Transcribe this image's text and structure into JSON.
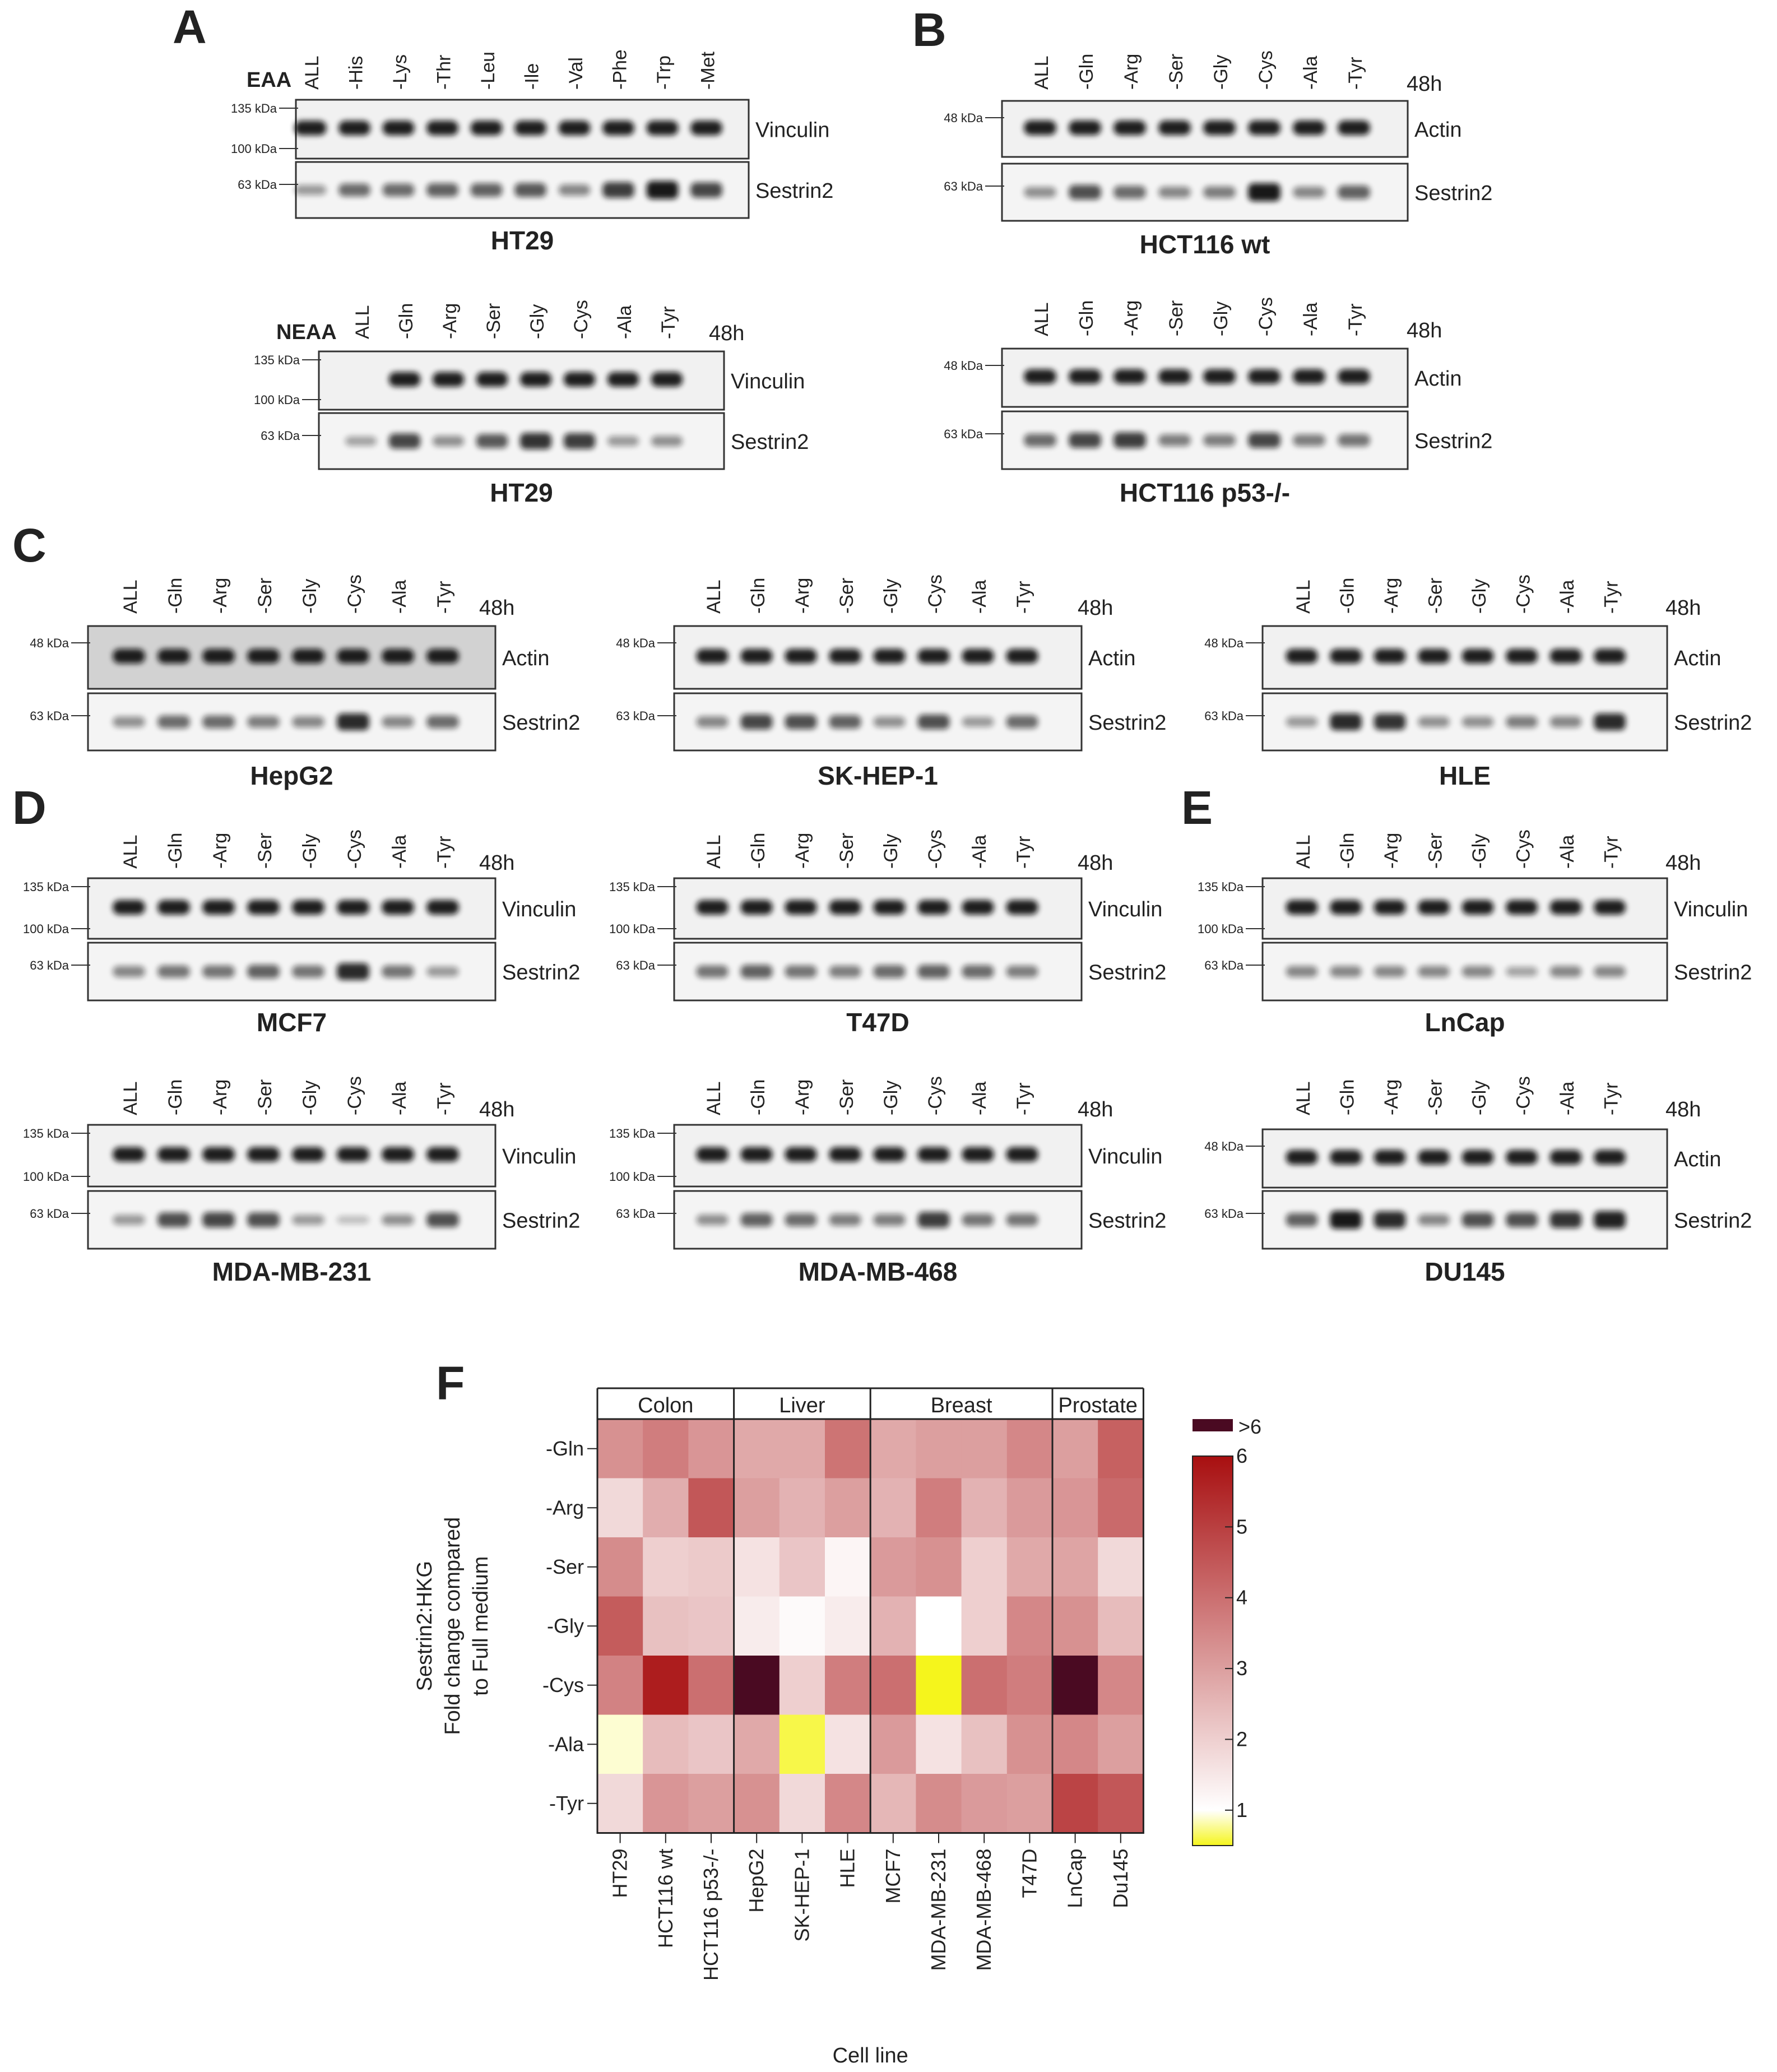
{
  "panel_letters": {
    "A": "A",
    "B": "B",
    "C": "C",
    "D": "D",
    "E": "E",
    "F": "F"
  },
  "units": {
    "kda_135": "135 kDa",
    "kda_100": "100 kDa",
    "kda_63": "63 kDa",
    "kda_48": "48 kDa",
    "time": "48h"
  },
  "panels": {
    "a1": {
      "group_label": "EAA",
      "lanes": [
        "ALL",
        "-His",
        "-Lys",
        "-Thr",
        "-Leu",
        "-Ile",
        "-Val",
        "-Phe",
        "-Trp",
        "-Met"
      ],
      "blot_top": "Vinculin",
      "blot_bottom": "Sestrin2",
      "title": "HT29",
      "intensity": [
        0.3,
        0.55,
        0.55,
        0.6,
        0.6,
        0.65,
        0.4,
        0.8,
        1.0,
        0.75
      ]
    },
    "a2": {
      "group_label": "NEAA",
      "lanes": [
        "ALL",
        "-Gln",
        "-Arg",
        "-Ser",
        "-Gly",
        "-Cys",
        "-Ala",
        "-Tyr"
      ],
      "blot_top": "Vinculin",
      "blot_bottom": "Sestrin2",
      "title": "HT29",
      "intensity": [
        0.25,
        0.75,
        0.35,
        0.65,
        0.85,
        0.8,
        0.3,
        0.35
      ]
    },
    "b1": {
      "lanes": [
        "ALL",
        "-Gln",
        "-Arg",
        "-Ser",
        "-Gly",
        "-Cys",
        "-Ala",
        "-Tyr"
      ],
      "blot_top": "Actin",
      "blot_bottom": "Sestrin2",
      "title": "HCT116 wt",
      "intensity": [
        0.35,
        0.7,
        0.55,
        0.4,
        0.45,
        1.0,
        0.4,
        0.6
      ]
    },
    "b2": {
      "lanes": [
        "ALL",
        "-Gln",
        "-Arg",
        "-Ser",
        "-Gly",
        "-Cys",
        "-Ala",
        "-Tyr"
      ],
      "blot_top": "Actin",
      "blot_bottom": "Sestrin2",
      "title": "HCT116 p53-/-",
      "intensity": [
        0.55,
        0.75,
        0.8,
        0.45,
        0.45,
        0.75,
        0.45,
        0.5
      ]
    },
    "c1": {
      "lanes": [
        "ALL",
        "-Gln",
        "-Arg",
        "-Ser",
        "-Gly",
        "-Cys",
        "-Ala",
        "-Tyr"
      ],
      "blot_top": "Actin",
      "blot_bottom": "Sestrin2",
      "title": "HepG2",
      "intensity": [
        0.35,
        0.55,
        0.55,
        0.45,
        0.4,
        0.9,
        0.4,
        0.55
      ]
    },
    "c2": {
      "lanes": [
        "ALL",
        "-Gln",
        "-Arg",
        "-Ser",
        "-Gly",
        "-Cys",
        "-Ala",
        "-Tyr"
      ],
      "blot_top": "Actin",
      "blot_bottom": "Sestrin2",
      "title": "SK-HEP-1",
      "intensity": [
        0.4,
        0.75,
        0.7,
        0.6,
        0.35,
        0.7,
        0.3,
        0.55
      ]
    },
    "c3": {
      "lanes": [
        "ALL",
        "-Gln",
        "-Arg",
        "-Ser",
        "-Gly",
        "-Cys",
        "-Ala",
        "-Tyr"
      ],
      "blot_top": "Actin",
      "blot_bottom": "Sestrin2",
      "title": "HLE",
      "intensity": [
        0.3,
        0.9,
        0.85,
        0.35,
        0.35,
        0.45,
        0.4,
        0.9
      ]
    },
    "d1": {
      "lanes": [
        "ALL",
        "-Gln",
        "-Arg",
        "-Ser",
        "-Gly",
        "-Cys",
        "-Ala",
        "-Tyr"
      ],
      "blot_top": "Vinculin",
      "blot_bottom": "Sestrin2",
      "title": "MCF7",
      "intensity": [
        0.4,
        0.5,
        0.5,
        0.6,
        0.5,
        0.9,
        0.5,
        0.3
      ]
    },
    "d2": {
      "lanes": [
        "ALL",
        "-Gln",
        "-Arg",
        "-Ser",
        "-Gly",
        "-Cys",
        "-Ala",
        "-Tyr"
      ],
      "blot_top": "Vinculin",
      "blot_bottom": "Sestrin2",
      "title": "T47D",
      "intensity": [
        0.5,
        0.6,
        0.5,
        0.45,
        0.55,
        0.6,
        0.55,
        0.45
      ]
    },
    "d3": {
      "lanes": [
        "ALL",
        "-Gln",
        "-Arg",
        "-Ser",
        "-Gly",
        "-Cys",
        "-Ala",
        "-Tyr"
      ],
      "blot_top": "Vinculin",
      "blot_bottom": "Sestrin2",
      "title": "MDA-MB-231",
      "intensity": [
        0.3,
        0.7,
        0.75,
        0.7,
        0.3,
        0.1,
        0.35,
        0.7
      ]
    },
    "d4": {
      "lanes": [
        "ALL",
        "-Gln",
        "-Arg",
        "-Ser",
        "-Gly",
        "-Cys",
        "-Ala",
        "-Tyr"
      ],
      "blot_top": "Vinculin",
      "blot_bottom": "Sestrin2",
      "title": "MDA-MB-468",
      "intensity": [
        0.35,
        0.6,
        0.55,
        0.45,
        0.45,
        0.8,
        0.5,
        0.5
      ]
    },
    "e1": {
      "lanes": [
        "ALL",
        "-Gln",
        "-Arg",
        "-Ser",
        "-Gly",
        "-Cys",
        "-Ala",
        "-Tyr"
      ],
      "blot_top": "Vinculin",
      "blot_bottom": "Sestrin2",
      "title": "LnCap",
      "intensity": [
        0.4,
        0.4,
        0.4,
        0.4,
        0.4,
        0.25,
        0.4,
        0.4
      ]
    },
    "e2": {
      "lanes": [
        "ALL",
        "-Gln",
        "-Arg",
        "-Ser",
        "-Gly",
        "-Cys",
        "-Ala",
        "-Tyr"
      ],
      "blot_top": "Actin",
      "blot_bottom": "Sestrin2",
      "title": "DU145",
      "intensity": [
        0.6,
        1.0,
        0.9,
        0.4,
        0.7,
        0.7,
        0.85,
        0.95
      ]
    }
  },
  "chart_data": {
    "type": "heatmap",
    "rows": [
      "-Gln",
      "-Arg",
      "-Ser",
      "-Gly",
      "-Cys",
      "-Ala",
      "-Tyr"
    ],
    "columns": [
      "HT29",
      "HCT116 wt",
      "HCT116 p53-/-",
      "HepG2",
      "SK-HEP-1",
      "HLE",
      "MCF7",
      "MDA-MB-231",
      "MDA-MB-468",
      "T47D",
      "LnCap",
      "Du145"
    ],
    "groups": [
      {
        "name": "Colon",
        "columns": [
          "HT29",
          "HCT116 wt",
          "HCT116 p53-/-"
        ]
      },
      {
        "name": "Liver",
        "columns": [
          "HepG2",
          "SK-HEP-1",
          "HLE"
        ]
      },
      {
        "name": "Breast",
        "columns": [
          "MCF7",
          "MDA-MB-231",
          "MDA-MB-468",
          "T47D"
        ]
      },
      {
        "name": "Prostate",
        "columns": [
          "LnCap",
          "Du145"
        ]
      }
    ],
    "values": [
      [
        3.3,
        3.7,
        3.2,
        2.8,
        2.8,
        3.9,
        2.8,
        3.0,
        3.0,
        3.5,
        3.0,
        4.3
      ],
      [
        1.8,
        2.7,
        4.5,
        3.0,
        2.6,
        3.0,
        2.6,
        3.7,
        2.6,
        3.1,
        3.2,
        4.1
      ],
      [
        3.4,
        2.0,
        2.1,
        1.6,
        2.2,
        1.2,
        3.1,
        3.3,
        2.0,
        2.8,
        2.9,
        1.8
      ],
      [
        4.4,
        2.3,
        2.2,
        1.4,
        1.1,
        1.4,
        2.6,
        1.0,
        2.0,
        3.5,
        3.3,
        2.4
      ],
      [
        3.6,
        5.7,
        4.0,
        6.5,
        2.0,
        3.7,
        4.0,
        0.5,
        4.0,
        3.7,
        6.5,
        3.5
      ],
      [
        0.9,
        2.4,
        2.2,
        2.8,
        0.6,
        1.6,
        3.1,
        1.6,
        2.3,
        3.3,
        3.5,
        3.0
      ],
      [
        1.8,
        3.2,
        3.0,
        3.3,
        1.8,
        3.5,
        2.5,
        3.4,
        3.1,
        3.0,
        4.9,
        4.5
      ]
    ],
    "ylabel_line1": "Sestrin2:HKG",
    "ylabel_line2": "Fold change compared",
    "ylabel_line3": "to Full medium",
    "xlabel": "Cell line",
    "colorbar": {
      "range": [
        0.5,
        6
      ],
      "ticks": [
        "6",
        "5",
        "4",
        "3",
        "2",
        "1"
      ],
      "overflow_label": ">6",
      "overflow_color": "#4a0a22",
      "colors": {
        "low": "#f5f51c",
        "mid": "#ffffff",
        "high": "#a80f10"
      }
    }
  }
}
